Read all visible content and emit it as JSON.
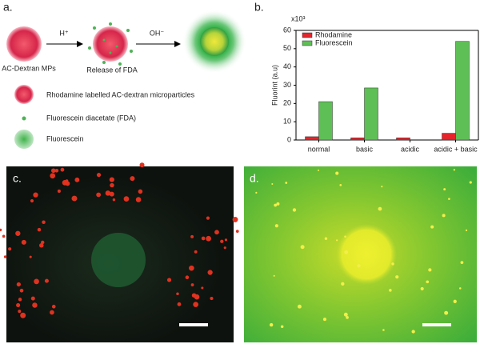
{
  "panel_a": {
    "label": "a.",
    "acid": "H⁺",
    "base": "OH⁻",
    "start_caption": "AC-Dextran MPs",
    "middle_caption": "Release of FDA",
    "legend": [
      "Rhodamine labelled AC-dextran microparticles",
      "Fluorescein diacetate (FDA)",
      "Fluorescein"
    ]
  },
  "panel_b": {
    "label": "b."
  },
  "panel_c": {
    "label": "c."
  },
  "panel_d": {
    "label": "d."
  },
  "chart_data": {
    "type": "bar",
    "y_label": "Fluorint (a.u)",
    "multiplier": "x10³",
    "categories": [
      "normal",
      "basic",
      "acidic",
      "acidic + basic"
    ],
    "series": [
      {
        "name": "Rhodamine",
        "color": "#e5242b",
        "values": [
          1.8,
          1.2,
          1.2,
          3.7
        ]
      },
      {
        "name": "Fluorescein",
        "color": "#5dbf55",
        "values": [
          21,
          28.5,
          0,
          54
        ]
      }
    ],
    "ylim": [
      0,
      60
    ],
    "yticks": [
      0,
      10,
      20,
      30,
      40,
      50,
      60
    ],
    "legend": "upper left"
  }
}
